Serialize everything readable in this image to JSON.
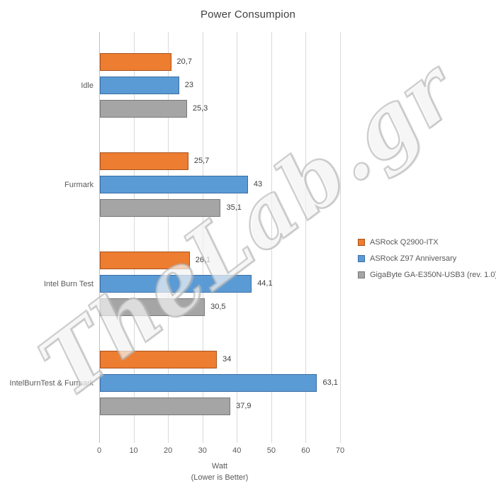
{
  "title": "Power Consumpion",
  "watermark": "TheLab.gr",
  "axis": {
    "x_ticks": [
      0,
      10,
      20,
      30,
      40,
      50,
      60,
      70
    ],
    "xlabel": "Watt",
    "note": "(Lower  is Better)"
  },
  "chart_data": {
    "type": "bar",
    "orientation": "horizontal",
    "title": "Power Consumpion",
    "categories": [
      "Idle",
      "Furmark",
      "Intel Burn Test",
      "IntelBurnTest & Furmark"
    ],
    "series": [
      {
        "name": "ASRock Q2900-ITX",
        "color": "#ED7D31",
        "border_color": "#A9511B",
        "values": [
          20.7,
          25.7,
          26.1,
          34
        ]
      },
      {
        "name": "ASRock Z97 Anniversary",
        "color": "#5B9BD5",
        "border_color": "#3A6EA5",
        "values": [
          23,
          43,
          44.1,
          63.1
        ]
      },
      {
        "name": "GigaByte GA-E350N-USB3 (rev. 1.0)",
        "color": "#A5A5A5",
        "border_color": "#787878",
        "values": [
          25.3,
          35.1,
          30.5,
          37.9
        ]
      }
    ],
    "xlim": [
      0,
      70
    ],
    "xlabel": "Watt",
    "note": "(Lower  is Better)",
    "legend_position": "middle-right",
    "grid": true,
    "decimal_separator": ","
  }
}
